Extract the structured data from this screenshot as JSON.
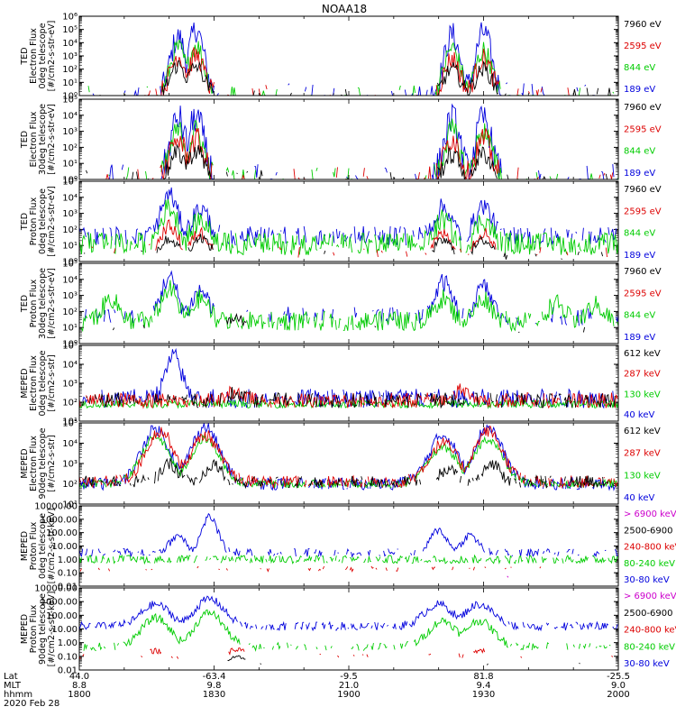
{
  "figure": {
    "title": "NOAA18"
  },
  "chart_data": [
    {
      "type": "line",
      "id": "ted-e-0",
      "ylabel_lines": [
        "TED",
        "Electron Flux",
        "0deg telescope",
        "[#/cm2-s-str-eV]"
      ],
      "y_scale": "log",
      "ylim_exp": [
        0,
        6
      ],
      "y_tick_labels": [
        "10⁰",
        "10¹",
        "10²",
        "10³",
        "10⁴",
        "10⁵",
        "10⁶"
      ],
      "legend": [
        {
          "label": "7960 eV",
          "color": "#000000"
        },
        {
          "label": "2595 eV",
          "color": "#dd0000"
        },
        {
          "label": "844 eV",
          "color": "#00cc00"
        },
        {
          "label": "189 eV",
          "color": "#0000dd"
        }
      ],
      "series": [
        {
          "color": "#0000dd",
          "bg": 0,
          "noise": 1.0,
          "peaks": [
            [
              1822,
              4.4
            ],
            [
              1826,
              5.0
            ],
            [
              1923,
              4.6
            ],
            [
              1930,
              4.8
            ]
          ],
          "density": 0.3
        },
        {
          "color": "#00cc00",
          "bg": 0,
          "noise": 0.8,
          "peaks": [
            [
              1822,
              3.6
            ],
            [
              1826,
              3.8
            ],
            [
              1923,
              3.6
            ],
            [
              1930,
              3.4
            ]
          ],
          "density": 0.25
        },
        {
          "color": "#dd0000",
          "bg": 0,
          "noise": 0.8,
          "peaks": [
            [
              1822,
              3.0
            ],
            [
              1826,
              3.0
            ],
            [
              1923,
              2.8
            ],
            [
              1930,
              2.8
            ]
          ],
          "density": 0.2
        },
        {
          "color": "#000000",
          "bg": 0,
          "noise": 0.6,
          "peaks": [
            [
              1822,
              2.3
            ],
            [
              1826,
              2.2
            ],
            [
              1923,
              2.0
            ],
            [
              1930,
              2.0
            ]
          ],
          "density": 0.2
        }
      ]
    },
    {
      "type": "line",
      "id": "ted-e-30",
      "ylabel_lines": [
        "TED",
        "Electron Flux",
        "30deg telescope",
        "[#/cm2-s-str-eV]"
      ],
      "y_scale": "log",
      "ylim_exp": [
        0,
        5
      ],
      "y_tick_labels": [
        "10⁰",
        "10¹",
        "10²",
        "10³",
        "10⁴",
        "10⁵"
      ],
      "legend": [
        {
          "label": "7960 eV",
          "color": "#000000"
        },
        {
          "label": "2595 eV",
          "color": "#dd0000"
        },
        {
          "label": "844 eV",
          "color": "#00cc00"
        },
        {
          "label": "189 eV",
          "color": "#0000dd"
        }
      ],
      "series": [
        {
          "color": "#0000dd",
          "bg": 0,
          "noise": 1.0,
          "peaks": [
            [
              1822,
              3.8
            ],
            [
              1826,
              3.9
            ],
            [
              1923,
              3.8
            ],
            [
              1930,
              3.8
            ]
          ],
          "density": 0.3
        },
        {
          "color": "#00cc00",
          "bg": 0,
          "noise": 0.8,
          "peaks": [
            [
              1822,
              3.0
            ],
            [
              1826,
              3.0
            ],
            [
              1923,
              3.0
            ],
            [
              1930,
              3.0
            ]
          ],
          "density": 0.25
        },
        {
          "color": "#dd0000",
          "bg": 0,
          "noise": 0.8,
          "peaks": [
            [
              1822,
              2.5
            ],
            [
              1826,
              2.5
            ],
            [
              1923,
              2.6
            ],
            [
              1930,
              2.5
            ]
          ],
          "density": 0.2
        },
        {
          "color": "#000000",
          "bg": 0,
          "noise": 0.6,
          "peaks": [
            [
              1822,
              1.6
            ],
            [
              1826,
              1.8
            ],
            [
              1923,
              1.5
            ],
            [
              1930,
              1.6
            ]
          ],
          "density": 0.2
        }
      ]
    },
    {
      "type": "line",
      "id": "ted-p-0",
      "ylabel_lines": [
        "TED",
        "Proton Flux",
        "0deg telescope",
        "[#/cm2-s-str-eV]"
      ],
      "y_scale": "log",
      "ylim_exp": [
        0,
        5
      ],
      "y_tick_labels": [
        "10⁰",
        "10¹",
        "10²",
        "10³",
        "10⁴",
        "10⁵"
      ],
      "legend": [
        {
          "label": "7960 eV",
          "color": "#000000"
        },
        {
          "label": "2595 eV",
          "color": "#dd0000"
        },
        {
          "label": "844 eV",
          "color": "#00cc00"
        },
        {
          "label": "189 eV",
          "color": "#0000dd"
        }
      ],
      "series": [
        {
          "color": "#0000dd",
          "bg": 1.6,
          "noise": 0.6,
          "peaks": [
            [
              1820,
              4.2
            ],
            [
              1827,
              3.3
            ],
            [
              1921,
              3.4
            ],
            [
              1930,
              3.5
            ]
          ],
          "density": 0.7
        },
        {
          "color": "#00cc00",
          "bg": 1.1,
          "noise": 0.7,
          "peaks": [
            [
              1820,
              3.4
            ],
            [
              1827,
              2.6
            ],
            [
              1921,
              2.6
            ],
            [
              1930,
              2.6
            ]
          ],
          "density": 0.9
        },
        {
          "color": "#dd0000",
          "bg": 0.6,
          "noise": 0.4,
          "peaks": [
            [
              1820,
              2.2
            ],
            [
              1827,
              1.8
            ],
            [
              1921,
              1.7
            ],
            [
              1930,
              1.8
            ]
          ],
          "density": 0.2
        },
        {
          "color": "#000000",
          "bg": 0.4,
          "noise": 0.3,
          "peaks": [
            [
              1820,
              1.4
            ],
            [
              1827,
              1.5
            ],
            [
              1921,
              1.3
            ],
            [
              1930,
              1.3
            ]
          ],
          "density": 0.15
        }
      ]
    },
    {
      "type": "line",
      "id": "ted-p-30",
      "ylabel_lines": [
        "TED",
        "Proton Flux",
        "30deg telescope",
        "[#/cm2-s-str-eV]"
      ],
      "y_scale": "log",
      "ylim_exp": [
        0,
        5
      ],
      "y_tick_labels": [
        "10⁰",
        "10¹",
        "10²",
        "10³",
        "10⁴",
        "10⁵"
      ],
      "legend": [
        {
          "label": "7960 eV",
          "color": "#000000"
        },
        {
          "label": "2595 eV",
          "color": "#dd0000"
        },
        {
          "label": "844 eV",
          "color": "#00cc00"
        },
        {
          "label": "189 eV",
          "color": "#0000dd"
        }
      ],
      "series": [
        {
          "color": "#0000dd",
          "bg": 1.7,
          "noise": 0.6,
          "peaks": [
            [
              1820,
              4.1
            ],
            [
              1827,
              3.3
            ],
            [
              1921,
              3.8
            ],
            [
              1930,
              3.5
            ]
          ],
          "density": 0.5
        },
        {
          "color": "#00cc00",
          "bg": 1.4,
          "noise": 0.6,
          "peaks": [
            [
              1807,
              2.8
            ],
            [
              1820,
              3.4
            ],
            [
              1827,
              2.8
            ],
            [
              1921,
              2.8
            ],
            [
              1930,
              2.8
            ],
            [
              1946,
              2.5
            ],
            [
              1955,
              2.4
            ]
          ],
          "density": 0.9
        },
        {
          "color": "#000000",
          "bg": 0.9,
          "noise": 0.3,
          "peaks": [
            [
              1835,
              1.6
            ]
          ],
          "density": 0.1
        }
      ]
    },
    {
      "type": "line",
      "id": "meped-e-0",
      "ylabel_lines": [
        "MEPED",
        "Electron Flux",
        "0deg telescope",
        "[#/cm2-s-str]"
      ],
      "y_scale": "log",
      "ylim_exp": [
        1,
        5
      ],
      "y_tick_labels": [
        "10¹",
        "10²",
        "10³",
        "10⁴",
        "10⁵"
      ],
      "legend": [
        {
          "label": "612 keV",
          "color": "#000000"
        },
        {
          "label": "287 keV",
          "color": "#dd0000"
        },
        {
          "label": "130 keV",
          "color": "#00cc00"
        },
        {
          "label": "40 keV",
          "color": "#0000dd"
        }
      ],
      "series": [
        {
          "color": "#0000dd",
          "bg": 2.2,
          "noise": 0.5,
          "peaks": [
            [
              1821,
              4.4
            ]
          ],
          "density": 0.8
        },
        {
          "color": "#00cc00",
          "bg": 1.9,
          "noise": 0.2,
          "peaks": [],
          "density": 1.0
        },
        {
          "color": "#dd0000",
          "bg": 2.1,
          "noise": 0.4,
          "peaks": [
            [
              1835,
              2.6
            ],
            [
              1925,
              2.6
            ]
          ],
          "density": 0.9
        },
        {
          "color": "#000000",
          "bg": 2.1,
          "noise": 0.4,
          "peaks": [
            [
              1835,
              2.5
            ]
          ],
          "density": 0.7
        }
      ]
    },
    {
      "type": "line",
      "id": "meped-e-90",
      "ylabel_lines": [
        "MEPED",
        "Electron Flux",
        "90deg telescope",
        "[#/cm2-s-str]"
      ],
      "y_scale": "log",
      "ylim_exp": [
        1,
        5
      ],
      "y_tick_labels": [
        "10¹",
        "10²",
        "10³",
        "10⁴",
        "10⁵"
      ],
      "legend": [
        {
          "label": "612 keV",
          "color": "#000000"
        },
        {
          "label": "287 keV",
          "color": "#dd0000"
        },
        {
          "label": "130 keV",
          "color": "#00cc00"
        },
        {
          "label": "40 keV",
          "color": "#0000dd"
        }
      ],
      "series": [
        {
          "color": "#0000dd",
          "bg": 2.0,
          "noise": 0.3,
          "peaks": [
            [
              1817,
              4.7
            ],
            [
              1828,
              4.8
            ],
            [
              1921,
              4.4
            ],
            [
              1931,
              4.8
            ]
          ],
          "density": 0.9,
          "wide": true
        },
        {
          "color": "#00cc00",
          "bg": 2.0,
          "noise": 0.2,
          "peaks": [
            [
              1817,
              4.3
            ],
            [
              1828,
              4.2
            ],
            [
              1921,
              3.8
            ],
            [
              1931,
              4.2
            ]
          ],
          "density": 0.9,
          "wide": true
        },
        {
          "color": "#dd0000",
          "bg": 2.1,
          "noise": 0.3,
          "peaks": [
            [
              1818,
              4.6
            ],
            [
              1828,
              4.4
            ],
            [
              1921,
              4.0
            ],
            [
              1931,
              4.6
            ]
          ],
          "density": 0.8,
          "wide": true
        },
        {
          "color": "#000000",
          "bg": 2.1,
          "noise": 0.3,
          "peaks": [
            [
              1820,
              3.0
            ],
            [
              1830,
              3.0
            ],
            [
              1922,
              2.7
            ],
            [
              1932,
              3.0
            ]
          ],
          "density": 0.7
        }
      ]
    },
    {
      "type": "line",
      "id": "meped-p-0",
      "ylabel_lines": [
        "MEPED",
        "Proton Flux",
        "0deg telescope",
        "[#/cm2-s-str-keV]"
      ],
      "y_scale": "log",
      "ylim_exp": [
        -2,
        4
      ],
      "y_tick_labels": [
        "0.01",
        "0.10",
        "1.00",
        "10.00",
        "100.00",
        "1000.00",
        "10000.00"
      ],
      "legend": [
        {
          "label": "> 6900 keV",
          "color": "#cc00cc"
        },
        {
          "label": "2500-6900",
          "color": "#000000"
        },
        {
          "label": "240-800 keV",
          "color": "#dd0000"
        },
        {
          "label": "80-240 keV",
          "color": "#00cc00"
        },
        {
          "label": "30-80 keV",
          "color": "#0000dd"
        }
      ],
      "series": [
        {
          "color": "#0000dd",
          "bg": 0.5,
          "noise": 0.3,
          "peaks": [
            [
              1822,
              1.8
            ],
            [
              1829,
              3.2
            ],
            [
              1920,
              2.2
            ],
            [
              1927,
              1.8
            ]
          ],
          "density": 0.6
        },
        {
          "color": "#00cc00",
          "bg": 0.0,
          "noise": 0.3,
          "peaks": [],
          "density": 0.8
        },
        {
          "color": "#dd0000",
          "bg": -0.7,
          "noise": 0.2,
          "peaks": [],
          "density": 0.3
        },
        {
          "color": "#cc00cc",
          "bg": -1.3,
          "noise": 0.1,
          "peaks": [],
          "density": 0.05
        }
      ]
    },
    {
      "type": "line",
      "id": "meped-p-90",
      "ylabel_lines": [
        "MEPED",
        "Proton Flux",
        "90deg telescope",
        "[#/cm2-s-str-keV]"
      ],
      "y_scale": "log",
      "ylim_exp": [
        -2,
        4
      ],
      "y_tick_labels": [
        "0.01",
        "0.10",
        "1.00",
        "10.00",
        "100.00",
        "1000.00",
        "10000.00"
      ],
      "legend": [
        {
          "label": "> 6900 keV",
          "color": "#cc00cc"
        },
        {
          "label": "2500-6900",
          "color": "#000000"
        },
        {
          "label": "240-800 keV",
          "color": "#dd0000"
        },
        {
          "label": "80-240 keV",
          "color": "#00cc00"
        },
        {
          "label": "30-80 keV",
          "color": "#0000dd"
        }
      ],
      "series": [
        {
          "color": "#0000dd",
          "bg": 1.2,
          "noise": 0.3,
          "peaks": [
            [
              1817,
              2.8
            ],
            [
              1829,
              3.2
            ],
            [
              1920,
              2.8
            ],
            [
              1929,
              2.8
            ]
          ],
          "density": 0.8,
          "wide": true
        },
        {
          "color": "#00cc00",
          "bg": -0.3,
          "noise": 0.3,
          "peaks": [
            [
              1817,
              1.8
            ],
            [
              1829,
              2.2
            ],
            [
              1921,
              1.6
            ],
            [
              1929,
              1.6
            ]
          ],
          "density": 0.6,
          "wide": true
        },
        {
          "color": "#dd0000",
          "bg": -1.0,
          "noise": 0.2,
          "peaks": [
            [
              1817,
              -0.6
            ],
            [
              1835,
              -0.5
            ],
            [
              1929,
              -0.6
            ]
          ],
          "density": 0.2
        },
        {
          "color": "#000000",
          "bg": -1.6,
          "noise": 0.1,
          "peaks": [
            [
              1835,
              -1.0
            ]
          ],
          "density": 0.04
        }
      ]
    }
  ],
  "x_axis": {
    "row_names": [
      "Lat",
      "MLT",
      "hhmm"
    ],
    "columns": [
      {
        "lat": "44.0",
        "mlt": "8.8",
        "hhmm": "1800"
      },
      {
        "lat": "-63.4",
        "mlt": "9.8",
        "hhmm": "1830"
      },
      {
        "lat": "-9.5",
        "mlt": "21.0",
        "hhmm": "1900"
      },
      {
        "lat": "81.8",
        "mlt": "9.4",
        "hhmm": "1930"
      },
      {
        "lat": "-25.5",
        "mlt": "9.0",
        "hhmm": "2000"
      }
    ],
    "date": "2020 Feb 28",
    "xlim_hhmm": [
      1800,
      2000
    ]
  }
}
